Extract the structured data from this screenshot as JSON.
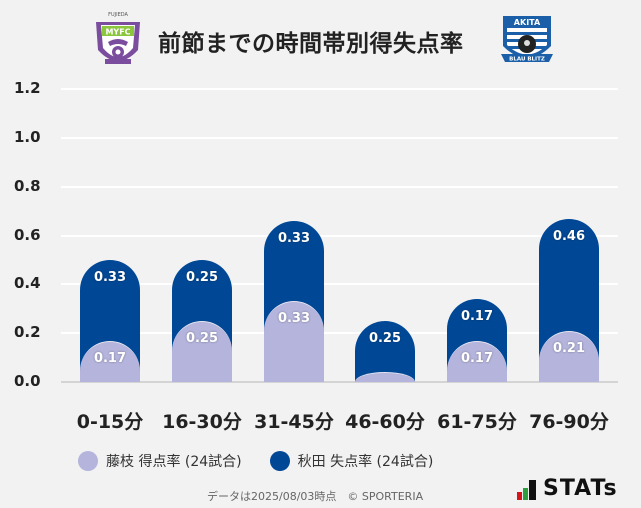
{
  "header": {
    "title": "前節までの時間帯別得失点率",
    "left_logo": {
      "name": "fujieda-myfc-crest",
      "top_text": "FUJIEDA",
      "text": "MYFC",
      "colors": [
        "#7b4d9e",
        "#8cc63f",
        "#ffffff"
      ]
    },
    "right_logo": {
      "name": "akita-blaublitz-crest",
      "top_text": "AKITA",
      "bottom_text": "BLAU BLITZ",
      "colors": [
        "#1a5fa8",
        "#ffffff",
        "#222222"
      ]
    }
  },
  "chart_data": {
    "type": "bar",
    "stacked": true,
    "title": "前節までの時間帯別得失点率",
    "xlabel": "",
    "ylabel": "",
    "ylim": [
      0,
      1.2
    ],
    "yticks": [
      "0.0",
      "0.2",
      "0.4",
      "0.6",
      "0.8",
      "1.0",
      "1.2"
    ],
    "grid": true,
    "legend_position": "bottom",
    "categories": [
      "0-15分",
      "16-30分",
      "31-45分",
      "46-60分",
      "61-75分",
      "76-90分"
    ],
    "series": [
      {
        "name": "藤枝 得点率 (24試合)",
        "color": "#b4b4dc",
        "values": [
          0.17,
          0.25,
          0.33,
          0.0,
          0.17,
          0.21
        ],
        "labels": [
          "0.17",
          "0.25",
          "0.33",
          "",
          "0.17",
          "0.21"
        ]
      },
      {
        "name": "秋田 失点率 (24試合)",
        "color": "#004896",
        "values": [
          0.33,
          0.25,
          0.33,
          0.25,
          0.17,
          0.46
        ],
        "labels": [
          "0.33",
          "0.25",
          "0.33",
          "0.25",
          "0.17",
          "0.46"
        ]
      }
    ]
  },
  "legend": {
    "items": [
      {
        "label": "藤枝 得点率 (24試合)",
        "color": "#b4b4dc"
      },
      {
        "label": "秋田 失点率 (24試合)",
        "color": "#004896"
      }
    ]
  },
  "footer": {
    "note": "データは2025/08/03時点　© SPORTERIA",
    "brand": "STATs",
    "brand_bar_colors": [
      "#d7141a",
      "#2e9e3e",
      "#111111"
    ]
  }
}
